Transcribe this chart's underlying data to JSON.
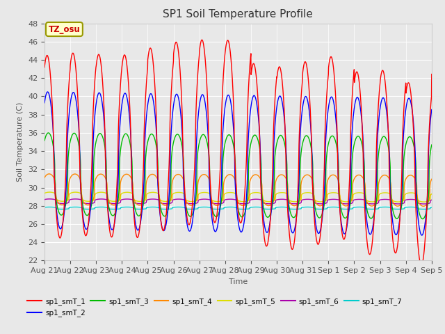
{
  "title": "SP1 Soil Temperature Profile",
  "xlabel": "Time",
  "ylabel": "Soil Temperature (C)",
  "ylim": [
    22,
    48
  ],
  "yticks": [
    22,
    24,
    26,
    28,
    30,
    32,
    34,
    36,
    38,
    40,
    42,
    44,
    46,
    48
  ],
  "annotation": "TZ_osu",
  "annotation_color": "#cc0000",
  "annotation_bg": "#ffffcc",
  "annotation_border": "#999900",
  "fig_bg": "#e8e8e8",
  "plot_bg": "#e8e8e8",
  "grid_color": "#ffffff",
  "series_colors": {
    "sp1_smT_1": "#ff0000",
    "sp1_smT_2": "#0000ff",
    "sp1_smT_3": "#00bb00",
    "sp1_smT_4": "#ff8800",
    "sp1_smT_5": "#dddd00",
    "sp1_smT_6": "#aa00aa",
    "sp1_smT_7": "#00cccc"
  },
  "n_days": 15,
  "x_tick_labels": [
    "Aug 21",
    "Aug 22",
    "Aug 23",
    "Aug 24",
    "Aug 25",
    "Aug 26",
    "Aug 27",
    "Aug 28",
    "Aug 29",
    "Aug 30",
    "Aug 31",
    "Sep 1",
    "Sep 2",
    "Sep 3",
    "Sep 4",
    "Sep 5"
  ]
}
